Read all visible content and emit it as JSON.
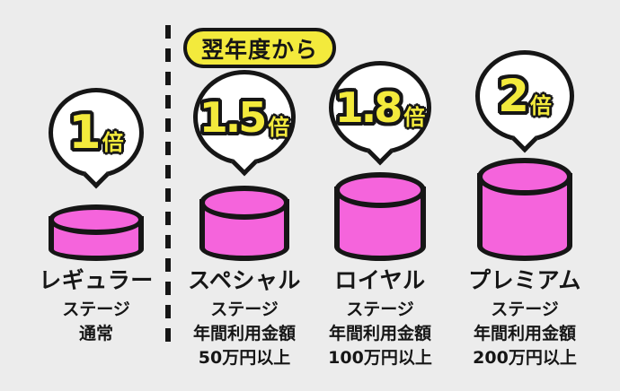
{
  "badge": {
    "label": "翌年度から"
  },
  "stages": [
    {
      "name": "レギュラー",
      "multiplier": "1",
      "unit": "倍",
      "line1": "ステージ",
      "line2": "通常",
      "line3": ""
    },
    {
      "name": "スペシャル",
      "multiplier": "1.5",
      "unit": "倍",
      "line1": "ステージ",
      "line2": "年間利用金額",
      "line3": "50万円以上"
    },
    {
      "name": "ロイヤル",
      "multiplier": "1.8",
      "unit": "倍",
      "line1": "ステージ",
      "line2": "年間利用金額",
      "line3": "100万円以上"
    },
    {
      "name": "プレミアム",
      "multiplier": "2",
      "unit": "倍",
      "line1": "ステージ",
      "line2": "年間利用金額",
      "line3": "200万円以上"
    }
  ],
  "colors": {
    "background": "#ececec",
    "pink": "#f564dc",
    "yellow": "#f3ea3c",
    "ink": "#161616"
  }
}
